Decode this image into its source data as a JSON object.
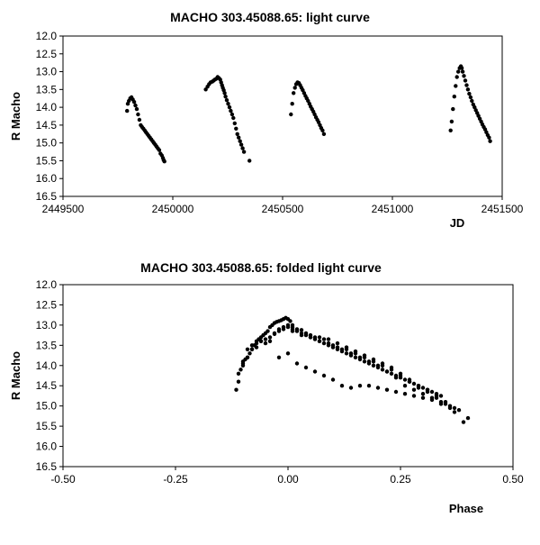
{
  "chart_data": [
    {
      "type": "scatter",
      "title": "MACHO 303.45088.65: light curve",
      "xlabel": "JD",
      "ylabel": "R Macho",
      "xlim": [
        2449500,
        2451500
      ],
      "ylim": [
        12.0,
        16.5
      ],
      "y_inverted": true,
      "grid": false,
      "legend": "none",
      "marker_color": "#000000",
      "x_ticks": [
        2449500,
        2450000,
        2450500,
        2451000,
        2451500
      ],
      "x_tick_labels": [
        "2449500",
        "2450000",
        "2450500",
        "2451000",
        "2451500"
      ],
      "y_ticks": [
        12.0,
        12.5,
        13.0,
        13.5,
        14.0,
        14.5,
        15.0,
        15.5,
        16.0,
        16.5
      ],
      "y_tick_labels": [
        "12.0",
        "12.5",
        "13.0",
        "13.5",
        "14.0",
        "14.5",
        "15.0",
        "15.5",
        "16.0",
        "16.5"
      ],
      "x": [
        2449792,
        2449795,
        2449800,
        2449806,
        2449812,
        2449818,
        2449824,
        2449830,
        2449836,
        2449842,
        2449848,
        2449854,
        2449860,
        2449866,
        2449872,
        2449878,
        2449884,
        2449890,
        2449896,
        2449902,
        2449908,
        2449914,
        2449920,
        2449926,
        2449932,
        2449938,
        2449944,
        2449950,
        2449955,
        2449958,
        2449962,
        2450150,
        2450158,
        2450165,
        2450172,
        2450180,
        2450186,
        2450192,
        2450198,
        2450204,
        2450210,
        2450216,
        2450220,
        2450224,
        2450228,
        2450232,
        2450236,
        2450240,
        2450246,
        2450252,
        2450258,
        2450264,
        2450270,
        2450276,
        2450282,
        2450288,
        2450294,
        2450300,
        2450306,
        2450312,
        2450318,
        2450324,
        2450349,
        2450538,
        2450544,
        2450550,
        2450556,
        2450562,
        2450568,
        2450574,
        2450580,
        2450586,
        2450592,
        2450598,
        2450604,
        2450610,
        2450616,
        2450622,
        2450628,
        2450634,
        2450640,
        2450646,
        2450652,
        2450658,
        2450664,
        2450670,
        2450676,
        2450682,
        2450688,
        2451265,
        2451270,
        2451276,
        2451282,
        2451288,
        2451294,
        2451300,
        2451306,
        2451312,
        2451316,
        2451320,
        2451326,
        2451332,
        2451338,
        2451344,
        2451350,
        2451356,
        2451362,
        2451368,
        2451374,
        2451380,
        2451386,
        2451392,
        2451398,
        2451404,
        2451410,
        2451416,
        2451422,
        2451428,
        2451434,
        2451440,
        2451445
      ],
      "y": [
        14.1,
        13.9,
        13.82,
        13.75,
        13.72,
        13.78,
        13.85,
        13.95,
        14.05,
        14.2,
        14.35,
        14.5,
        14.55,
        14.6,
        14.65,
        14.7,
        14.75,
        14.8,
        14.85,
        14.9,
        14.95,
        15.0,
        15.05,
        15.1,
        15.15,
        15.2,
        15.3,
        15.35,
        15.42,
        15.48,
        15.52,
        13.5,
        13.42,
        13.35,
        13.3,
        13.28,
        13.25,
        13.22,
        13.2,
        13.15,
        13.18,
        13.22,
        13.3,
        13.38,
        13.45,
        13.52,
        13.6,
        13.7,
        13.8,
        13.9,
        14.0,
        14.1,
        14.2,
        14.3,
        14.45,
        14.6,
        14.75,
        14.85,
        14.95,
        15.05,
        15.15,
        15.25,
        15.5,
        14.2,
        13.9,
        13.6,
        13.45,
        13.35,
        13.3,
        13.32,
        13.38,
        13.45,
        13.52,
        13.6,
        13.68,
        13.75,
        13.82,
        13.9,
        13.98,
        14.05,
        14.12,
        14.2,
        14.28,
        14.35,
        14.42,
        14.5,
        14.58,
        14.65,
        14.75,
        14.65,
        14.4,
        14.05,
        13.7,
        13.4,
        13.15,
        13.0,
        12.9,
        12.85,
        12.9,
        13.0,
        13.12,
        13.25,
        13.38,
        13.5,
        13.62,
        13.72,
        13.82,
        13.92,
        14.0,
        14.08,
        14.16,
        14.24,
        14.32,
        14.4,
        14.48,
        14.55,
        14.62,
        14.7,
        14.78,
        14.85,
        14.95
      ]
    },
    {
      "type": "scatter",
      "title": "MACHO 303.45088.65: folded light curve",
      "xlabel": "Phase",
      "ylabel": "R Macho",
      "xlim": [
        -0.5,
        0.5
      ],
      "ylim": [
        12.0,
        16.5
      ],
      "y_inverted": true,
      "grid": false,
      "legend": "none",
      "marker_color": "#000000",
      "x_ticks": [
        -0.5,
        -0.25,
        0.0,
        0.25,
        0.5
      ],
      "x_tick_labels": [
        "-0.50",
        "-0.25",
        "0.00",
        "0.25",
        "0.50"
      ],
      "y_ticks": [
        12.0,
        12.5,
        13.0,
        13.5,
        14.0,
        14.5,
        15.0,
        15.5,
        16.0,
        16.5
      ],
      "y_tick_labels": [
        "12.0",
        "12.5",
        "13.0",
        "13.5",
        "14.0",
        "14.5",
        "15.0",
        "15.5",
        "16.0",
        "16.5"
      ],
      "x": [
        -0.115,
        -0.11,
        -0.105,
        -0.1,
        -0.095,
        -0.09,
        -0.085,
        -0.08,
        -0.075,
        -0.07,
        -0.065,
        -0.06,
        -0.055,
        -0.05,
        -0.045,
        -0.04,
        -0.035,
        -0.03,
        -0.025,
        -0.02,
        -0.015,
        -0.01,
        -0.005,
        0.0,
        0.005,
        0.01,
        -0.11,
        -0.1,
        -0.09,
        -0.08,
        -0.07,
        -0.06,
        -0.05,
        -0.04,
        -0.03,
        -0.02,
        -0.01,
        0.0,
        -0.1,
        -0.09,
        -0.08,
        -0.07,
        -0.06,
        -0.05,
        -0.04,
        -0.03,
        -0.02,
        -0.01,
        0.0,
        0.01,
        0.02,
        0.03,
        0.04,
        0.05,
        0.06,
        0.07,
        0.08,
        0.09,
        0.1,
        0.11,
        0.12,
        0.13,
        0.14,
        0.15,
        0.16,
        0.17,
        0.18,
        0.19,
        0.2,
        0.21,
        0.22,
        0.23,
        0.24,
        0.25,
        0.26,
        0.27,
        0.28,
        0.29,
        0.3,
        0.31,
        0.32,
        0.33,
        0.34,
        0.02,
        0.04,
        0.06,
        0.08,
        0.1,
        0.12,
        0.14,
        0.16,
        0.18,
        0.2,
        0.22,
        0.24,
        0.26,
        0.28,
        0.3,
        0.32,
        0.34,
        0.36,
        0.38,
        0.4,
        0.01,
        0.03,
        0.05,
        0.07,
        0.09,
        0.11,
        0.13,
        0.15,
        0.17,
        0.19,
        0.21,
        0.23,
        0.25,
        0.27,
        0.29,
        0.31,
        0.33,
        0.35,
        0.37,
        0.39,
        0.01,
        0.03,
        0.05,
        0.07,
        0.09,
        0.11,
        0.13,
        0.15,
        0.17,
        0.19,
        0.21,
        0.23,
        0.25,
        0.27,
        0.29,
        0.31,
        0.33,
        0.35,
        0.37,
        -0.02,
        0.0,
        0.02,
        0.04,
        0.06,
        0.08,
        0.1,
        0.12,
        0.14,
        0.16,
        0.18,
        0.2,
        0.22,
        0.24,
        0.26,
        0.28,
        0.3,
        0.32,
        0.34,
        0.36
      ],
      "y": [
        14.6,
        14.2,
        14.1,
        13.95,
        13.85,
        13.8,
        13.7,
        13.6,
        13.5,
        13.4,
        13.35,
        13.3,
        13.25,
        13.2,
        13.15,
        13.05,
        13.0,
        12.95,
        12.92,
        12.9,
        12.88,
        12.85,
        12.82,
        12.85,
        12.9,
        13.0,
        14.4,
        14.0,
        13.8,
        13.6,
        13.45,
        13.4,
        13.45,
        13.4,
        13.2,
        13.1,
        13.05,
        13.0,
        13.9,
        13.6,
        13.5,
        13.55,
        13.4,
        13.35,
        13.3,
        13.22,
        13.15,
        13.1,
        13.05,
        13.1,
        13.15,
        13.2,
        13.25,
        13.3,
        13.35,
        13.4,
        13.45,
        13.5,
        13.55,
        13.6,
        13.65,
        13.7,
        13.75,
        13.8,
        13.85,
        13.9,
        13.95,
        14.0,
        14.05,
        14.1,
        14.15,
        14.2,
        14.25,
        14.3,
        14.35,
        14.4,
        14.45,
        14.5,
        14.55,
        14.6,
        14.65,
        14.7,
        14.75,
        13.1,
        13.2,
        13.3,
        13.35,
        13.5,
        13.6,
        13.7,
        13.8,
        13.9,
        14.0,
        14.15,
        14.3,
        14.5,
        14.6,
        14.7,
        14.8,
        14.9,
        15.0,
        15.1,
        15.3,
        13.15,
        13.25,
        13.3,
        13.4,
        13.45,
        13.55,
        13.6,
        13.7,
        13.8,
        13.9,
        14.0,
        14.1,
        14.25,
        14.4,
        14.55,
        14.65,
        14.8,
        14.95,
        15.15,
        15.4,
        13.05,
        13.12,
        13.25,
        13.3,
        13.35,
        13.45,
        13.55,
        13.65,
        13.75,
        13.85,
        13.95,
        14.05,
        14.2,
        14.35,
        14.5,
        14.6,
        14.75,
        14.9,
        15.05,
        13.8,
        13.7,
        13.95,
        14.05,
        14.15,
        14.25,
        14.35,
        14.5,
        14.55,
        14.5,
        14.5,
        14.55,
        14.6,
        14.65,
        14.7,
        14.75,
        14.8,
        14.85,
        14.95,
        15.05
      ]
    }
  ]
}
